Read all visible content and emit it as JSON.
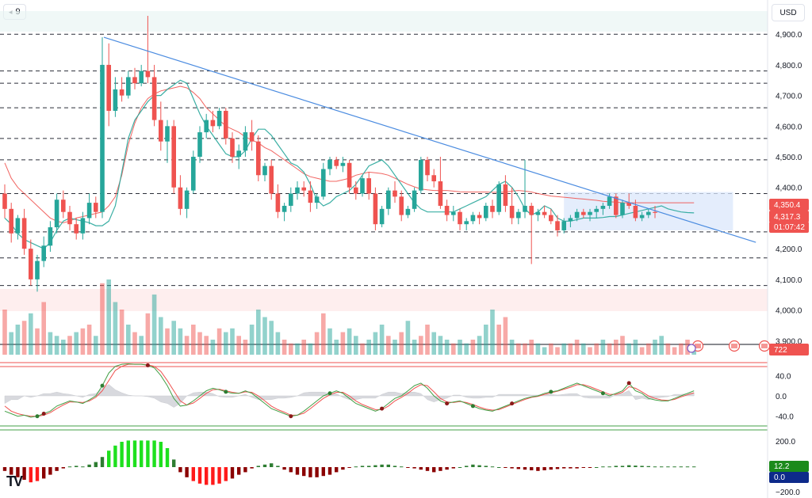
{
  "toolbar": {
    "interval_label": "9",
    "currency_label": "USD",
    "logo_text": "TV"
  },
  "colors": {
    "up": "#26a69a",
    "down": "#ef5350",
    "trend": "#4a8be0",
    "ma": "#ef5350",
    "ma_short": "#26a69a",
    "grid": "#2a2e39",
    "range_box": "#dbe7fb",
    "stoch_k": "#43a047",
    "stoch_d": "#ef5350",
    "hist_up_strong": "#1ee01e",
    "hist_up": "#2e7d32",
    "hist_down_strong": "#ff1a1a",
    "hist_down": "#8b0000",
    "tag_blue": "#2962ff",
    "tag_green": "#1b8a1b",
    "tag_navy": "#0d2a8a"
  },
  "price_axis": {
    "ticks": [
      "4,900.0",
      "4,800.0",
      "4,700.0",
      "4,600.0",
      "4,500.0",
      "4,400.0",
      "4,300.0",
      "4,200.0",
      "4,100.0",
      "4,000.0",
      "3,900.0"
    ],
    "tag_resistance": "4,350.4",
    "tag_price": "4,317.3",
    "tag_countdown": "01:07:42",
    "tag_volume": "722"
  },
  "oscillator_axis": {
    "ticks": [
      "40.0",
      "0.0",
      "-40.0"
    ]
  },
  "histogram_axis": {
    "ticks": [
      "200.0",
      "−200.0"
    ],
    "tag_value_1": "12.2",
    "tag_value_2": "0.0"
  },
  "chart_data": {
    "type": "candlestick",
    "x_unit": "bar index (9h bars)",
    "ylim": [
      3880,
      4960
    ],
    "horizontal_levels": [
      4900,
      4780,
      4740,
      4660,
      4560,
      4490,
      4380,
      4255,
      4170,
      4080
    ],
    "trendline": {
      "from": [
        0,
        4890
      ],
      "to": [
        126,
        4660
      ]
    },
    "consolidation_range": {
      "x": [
        86,
        112
      ],
      "y": [
        4260,
        4385
      ]
    },
    "sma_long": [
      4480,
      4430,
      4400,
      4380,
      4360,
      4340,
      4320,
      4300,
      4290,
      4285,
      4290,
      4300,
      4305,
      4310,
      4315,
      4320,
      4340,
      4370,
      4440,
      4540,
      4610,
      4660,
      4690,
      4705,
      4715,
      4720,
      4725,
      4730,
      4725,
      4710,
      4690,
      4660,
      4640,
      4620,
      4600,
      4590,
      4580,
      4565,
      4555,
      4545,
      4530,
      4520,
      4505,
      4490,
      4475,
      4460,
      4445,
      4435,
      4430,
      4425,
      4420,
      4420,
      4425,
      4430,
      4440,
      4445,
      4450,
      4448,
      4445,
      4440,
      4430,
      4420,
      4410,
      4402,
      4395,
      4392,
      4390,
      4390,
      4390,
      4388,
      4386,
      4385,
      4385,
      4385,
      4385,
      4384,
      4384,
      4385,
      4388,
      4390,
      4388,
      4385,
      4380,
      4376,
      4372,
      4370,
      4368,
      4366,
      4364,
      4362,
      4360,
      4358,
      4355,
      4353,
      4352,
      4350,
      4350,
      4350,
      4350,
      4350,
      4350,
      4350,
      4350,
      4350,
      4350,
      4350,
      4350
    ],
    "sma_short": [
      4300,
      4280,
      4250,
      4230,
      4220,
      4210,
      4200,
      4220,
      4260,
      4290,
      4300,
      4295,
      4290,
      4285,
      4275,
      4275,
      4290,
      4340,
      4450,
      4560,
      4620,
      4650,
      4680,
      4700,
      4700,
      4720,
      4735,
      4750,
      4740,
      4690,
      4640,
      4600,
      4570,
      4540,
      4510,
      4500,
      4500,
      4520,
      4560,
      4590,
      4590,
      4570,
      4540,
      4510,
      4480,
      4470,
      4450,
      4410,
      4360,
      4340,
      4350,
      4370,
      4380,
      4390,
      4410,
      4440,
      4470,
      4480,
      4490,
      4470,
      4440,
      4410,
      4380,
      4350,
      4330,
      4320,
      4320,
      4320,
      4320,
      4320,
      4330,
      4340,
      4350,
      4360,
      4370,
      4390,
      4410,
      4420,
      4400,
      4370,
      4330,
      4310,
      4320,
      4340,
      4330,
      4300,
      4290,
      4290,
      4295,
      4300,
      4300,
      4300,
      4302,
      4305,
      4305,
      4310,
      4315,
      4320,
      4325,
      4330,
      4335,
      4340,
      4330,
      4325,
      4320,
      4318,
      4317
    ],
    "candles": [
      [
        4380,
        4410,
        4300,
        4330
      ],
      [
        4330,
        4350,
        4220,
        4250
      ],
      [
        4250,
        4310,
        4230,
        4300
      ],
      [
        4300,
        4330,
        4180,
        4200
      ],
      [
        4200,
        4230,
        4080,
        4100
      ],
      [
        4100,
        4180,
        4060,
        4160
      ],
      [
        4160,
        4240,
        4140,
        4210
      ],
      [
        4210,
        4290,
        4190,
        4270
      ],
      [
        4270,
        4380,
        4250,
        4360
      ],
      [
        4360,
        4390,
        4300,
        4320
      ],
      [
        4320,
        4340,
        4260,
        4280
      ],
      [
        4280,
        4300,
        4230,
        4250
      ],
      [
        4250,
        4320,
        4230,
        4300
      ],
      [
        4300,
        4380,
        4280,
        4350
      ],
      [
        4350,
        4370,
        4300,
        4320
      ],
      [
        4320,
        4890,
        4300,
        4800
      ],
      [
        4800,
        4870,
        4600,
        4650
      ],
      [
        4650,
        4760,
        4630,
        4720
      ],
      [
        4720,
        4760,
        4680,
        4700
      ],
      [
        4700,
        4780,
        4690,
        4760
      ],
      [
        4760,
        4790,
        4720,
        4740
      ],
      [
        4740,
        4800,
        4730,
        4780
      ],
      [
        4780,
        4960,
        4740,
        4760
      ],
      [
        4760,
        4800,
        4600,
        4620
      ],
      [
        4620,
        4680,
        4520,
        4550
      ],
      [
        4550,
        4620,
        4480,
        4600
      ],
      [
        4600,
        4620,
        4380,
        4400
      ],
      [
        4400,
        4440,
        4310,
        4330
      ],
      [
        4330,
        4400,
        4300,
        4390
      ],
      [
        4390,
        4520,
        4380,
        4500
      ],
      [
        4500,
        4600,
        4480,
        4580
      ],
      [
        4580,
        4640,
        4560,
        4620
      ],
      [
        4620,
        4650,
        4580,
        4600
      ],
      [
        4600,
        4660,
        4590,
        4650
      ],
      [
        4650,
        4660,
        4540,
        4560
      ],
      [
        4560,
        4580,
        4480,
        4500
      ],
      [
        4500,
        4540,
        4460,
        4520
      ],
      [
        4520,
        4600,
        4500,
        4580
      ],
      [
        4580,
        4620,
        4520,
        4550
      ],
      [
        4550,
        4570,
        4420,
        4440
      ],
      [
        4440,
        4480,
        4420,
        4470
      ],
      [
        4470,
        4490,
        4360,
        4380
      ],
      [
        4380,
        4410,
        4300,
        4320
      ],
      [
        4320,
        4350,
        4290,
        4340
      ],
      [
        4340,
        4400,
        4320,
        4380
      ],
      [
        4380,
        4420,
        4360,
        4400
      ],
      [
        4400,
        4420,
        4370,
        4390
      ],
      [
        4390,
        4420,
        4320,
        4350
      ],
      [
        4350,
        4380,
        4330,
        4370
      ],
      [
        4370,
        4480,
        4360,
        4460
      ],
      [
        4460,
        4500,
        4440,
        4490
      ],
      [
        4490,
        4500,
        4460,
        4470
      ],
      [
        4470,
        4500,
        4450,
        4480
      ],
      [
        4480,
        4490,
        4380,
        4400
      ],
      [
        4400,
        4420,
        4360,
        4380
      ],
      [
        4380,
        4440,
        4370,
        4430
      ],
      [
        4430,
        4450,
        4360,
        4380
      ],
      [
        4380,
        4400,
        4260,
        4280
      ],
      [
        4280,
        4340,
        4270,
        4330
      ],
      [
        4330,
        4400,
        4310,
        4390
      ],
      [
        4390,
        4420,
        4350,
        4370
      ],
      [
        4370,
        4390,
        4290,
        4310
      ],
      [
        4310,
        4340,
        4300,
        4330
      ],
      [
        4330,
        4400,
        4320,
        4390
      ],
      [
        4390,
        4500,
        4380,
        4490
      ],
      [
        4490,
        4500,
        4420,
        4440
      ],
      [
        4440,
        4460,
        4400,
        4420
      ],
      [
        4420,
        4500,
        4330,
        4340
      ],
      [
        4340,
        4360,
        4290,
        4310
      ],
      [
        4310,
        4340,
        4290,
        4320
      ],
      [
        4320,
        4330,
        4260,
        4280
      ],
      [
        4280,
        4300,
        4260,
        4290
      ],
      [
        4290,
        4320,
        4280,
        4310
      ],
      [
        4310,
        4320,
        4280,
        4300
      ],
      [
        4300,
        4350,
        4290,
        4340
      ],
      [
        4340,
        4360,
        4300,
        4320
      ],
      [
        4320,
        4420,
        4310,
        4410
      ],
      [
        4410,
        4440,
        4320,
        4340
      ],
      [
        4340,
        4400,
        4280,
        4300
      ],
      [
        4300,
        4330,
        4280,
        4320
      ],
      [
        4320,
        4490,
        4300,
        4340
      ],
      [
        4340,
        4350,
        4150,
        4310
      ],
      [
        4310,
        4330,
        4290,
        4320
      ],
      [
        4320,
        4340,
        4300,
        4310
      ],
      [
        4310,
        4330,
        4280,
        4290
      ],
      [
        4290,
        4310,
        4240,
        4260
      ],
      [
        4260,
        4300,
        4250,
        4290
      ],
      [
        4290,
        4310,
        4270,
        4300
      ],
      [
        4300,
        4330,
        4290,
        4320
      ],
      [
        4320,
        4330,
        4300,
        4310
      ],
      [
        4310,
        4330,
        4290,
        4320
      ],
      [
        4320,
        4340,
        4300,
        4330
      ],
      [
        4330,
        4350,
        4310,
        4340
      ],
      [
        4340,
        4380,
        4330,
        4370
      ],
      [
        4370,
        4380,
        4300,
        4310
      ],
      [
        4310,
        4360,
        4300,
        4350
      ],
      [
        4350,
        4380,
        4330,
        4340
      ],
      [
        4340,
        4360,
        4290,
        4300
      ],
      [
        4300,
        4320,
        4290,
        4310
      ],
      [
        4310,
        4330,
        4300,
        4320
      ],
      [
        4320,
        4340,
        4300,
        4317
      ]
    ],
    "volume": [
      [
        60,
        0
      ],
      [
        30,
        1
      ],
      [
        40,
        1
      ],
      [
        45,
        0
      ],
      [
        55,
        1
      ],
      [
        35,
        0
      ],
      [
        70,
        0
      ],
      [
        30,
        1
      ],
      [
        25,
        1
      ],
      [
        20,
        1
      ],
      [
        25,
        0
      ],
      [
        30,
        1
      ],
      [
        35,
        0
      ],
      [
        40,
        0
      ],
      [
        25,
        1
      ],
      [
        95,
        0
      ],
      [
        100,
        1
      ],
      [
        70,
        1
      ],
      [
        60,
        0
      ],
      [
        40,
        1
      ],
      [
        30,
        0
      ],
      [
        25,
        1
      ],
      [
        55,
        0
      ],
      [
        80,
        1
      ],
      [
        50,
        1
      ],
      [
        35,
        0
      ],
      [
        45,
        1
      ],
      [
        35,
        1
      ],
      [
        25,
        0
      ],
      [
        40,
        0
      ],
      [
        30,
        0
      ],
      [
        25,
        0
      ],
      [
        20,
        1
      ],
      [
        35,
        0
      ],
      [
        30,
        1
      ],
      [
        35,
        1
      ],
      [
        25,
        0
      ],
      [
        20,
        0
      ],
      [
        40,
        1
      ],
      [
        60,
        1
      ],
      [
        50,
        1
      ],
      [
        45,
        1
      ],
      [
        30,
        1
      ],
      [
        20,
        0
      ],
      [
        15,
        0
      ],
      [
        15,
        1
      ],
      [
        20,
        0
      ],
      [
        15,
        1
      ],
      [
        30,
        0
      ],
      [
        55,
        0
      ],
      [
        35,
        1
      ],
      [
        20,
        1
      ],
      [
        30,
        0
      ],
      [
        35,
        1
      ],
      [
        25,
        1
      ],
      [
        15,
        0
      ],
      [
        20,
        1
      ],
      [
        30,
        1
      ],
      [
        40,
        1
      ],
      [
        25,
        0
      ],
      [
        20,
        1
      ],
      [
        30,
        0
      ],
      [
        45,
        1
      ],
      [
        20,
        1
      ],
      [
        25,
        0
      ],
      [
        40,
        0
      ],
      [
        30,
        1
      ],
      [
        25,
        1
      ],
      [
        20,
        1
      ],
      [
        15,
        0
      ],
      [
        20,
        1
      ],
      [
        15,
        1
      ],
      [
        20,
        0
      ],
      [
        25,
        1
      ],
      [
        40,
        1
      ],
      [
        60,
        1
      ],
      [
        40,
        0
      ],
      [
        50,
        0
      ],
      [
        20,
        1
      ],
      [
        15,
        0
      ],
      [
        15,
        0
      ],
      [
        20,
        0
      ],
      [
        15,
        1
      ],
      [
        10,
        1
      ],
      [
        15,
        0
      ],
      [
        10,
        0
      ],
      [
        15,
        1
      ],
      [
        15,
        0
      ],
      [
        20,
        0
      ],
      [
        15,
        1
      ],
      [
        10,
        0
      ],
      [
        15,
        0
      ],
      [
        20,
        1
      ],
      [
        15,
        0
      ],
      [
        20,
        0
      ],
      [
        25,
        0
      ],
      [
        15,
        1
      ],
      [
        20,
        1
      ],
      [
        10,
        0
      ],
      [
        15,
        0
      ],
      [
        20,
        1
      ],
      [
        25,
        1
      ],
      [
        15,
        0
      ],
      [
        10,
        0
      ],
      [
        15,
        0
      ],
      [
        20,
        0
      ],
      [
        10,
        1
      ]
    ],
    "stochastic": {
      "k": [
        -30,
        -35,
        -40,
        -38,
        -42,
        -40,
        -35,
        -30,
        -20,
        -15,
        -10,
        -12,
        -15,
        -8,
        0,
        20,
        45,
        58,
        62,
        63,
        62,
        62,
        60,
        55,
        40,
        20,
        -5,
        -20,
        -18,
        -10,
        0,
        10,
        15,
        12,
        8,
        5,
        5,
        10,
        5,
        -5,
        -15,
        -25,
        -30,
        -35,
        -40,
        -38,
        -30,
        -20,
        -10,
        0,
        5,
        10,
        5,
        -5,
        -15,
        -20,
        -25,
        -30,
        -25,
        -15,
        -5,
        0,
        10,
        20,
        25,
        15,
        0,
        -10,
        -15,
        -12,
        -10,
        -15,
        -20,
        -25,
        -28,
        -30,
        -25,
        -20,
        -15,
        -10,
        -5,
        -2,
        0,
        5,
        8,
        10,
        15,
        20,
        25,
        20,
        15,
        10,
        5,
        0,
        5,
        10,
        25,
        10,
        5,
        -5,
        -8,
        -10,
        -10,
        -5,
        0,
        5,
        10
      ],
      "d": [
        -20,
        -30,
        -35,
        -38,
        -40,
        -40,
        -38,
        -33,
        -25,
        -18,
        -12,
        -12,
        -13,
        -10,
        -3,
        10,
        30,
        50,
        58,
        62,
        62,
        62,
        61,
        58,
        48,
        30,
        10,
        -10,
        -18,
        -14,
        -5,
        5,
        12,
        13,
        10,
        7,
        5,
        8,
        7,
        0,
        -10,
        -20,
        -27,
        -32,
        -38,
        -38,
        -34,
        -25,
        -15,
        -5,
        2,
        7,
        7,
        0,
        -10,
        -17,
        -22,
        -27,
        -27,
        -20,
        -10,
        -3,
        5,
        15,
        22,
        20,
        8,
        -5,
        -12,
        -13,
        -11,
        -13,
        -17,
        -22,
        -26,
        -28,
        -27,
        -22,
        -17,
        -12,
        -7,
        -3,
        -1,
        3,
        6,
        9,
        13,
        17,
        22,
        22,
        18,
        13,
        8,
        3,
        3,
        7,
        18,
        15,
        8,
        0,
        -5,
        -8,
        -9,
        -7,
        -2,
        2,
        6
      ],
      "cross_markers_green": [
        5,
        15,
        34,
        50,
        72,
        84,
        92
      ],
      "cross_markers_red": [
        6,
        22,
        44,
        58,
        68,
        78,
        96
      ]
    },
    "histogram": [
      -30,
      -60,
      -80,
      -100,
      -120,
      -110,
      -90,
      -60,
      -30,
      -10,
      5,
      10,
      5,
      20,
      40,
      80,
      130,
      170,
      200,
      210,
      210,
      210,
      210,
      210,
      200,
      150,
      60,
      -40,
      -80,
      -110,
      -130,
      -140,
      -140,
      -130,
      -110,
      -90,
      -60,
      -40,
      -10,
      10,
      20,
      30,
      10,
      -20,
      -40,
      -60,
      -70,
      -80,
      -80,
      -70,
      -60,
      -40,
      -20,
      -5,
      5,
      10,
      10,
      15,
      20,
      20,
      10,
      5,
      -5,
      -10,
      -20,
      -30,
      -40,
      -30,
      -20,
      -10,
      0,
      10,
      20,
      15,
      10,
      5,
      0,
      -5,
      -10,
      -15,
      -20,
      -25,
      -30,
      -25,
      -20,
      -15,
      -10,
      -10,
      -10,
      -5,
      -5,
      0,
      5,
      5,
      10,
      10,
      15,
      12,
      10,
      8,
      5,
      5,
      5,
      5,
      5,
      5,
      5
    ],
    "indicator_levels": [
      80,
      50,
      20
    ]
  }
}
